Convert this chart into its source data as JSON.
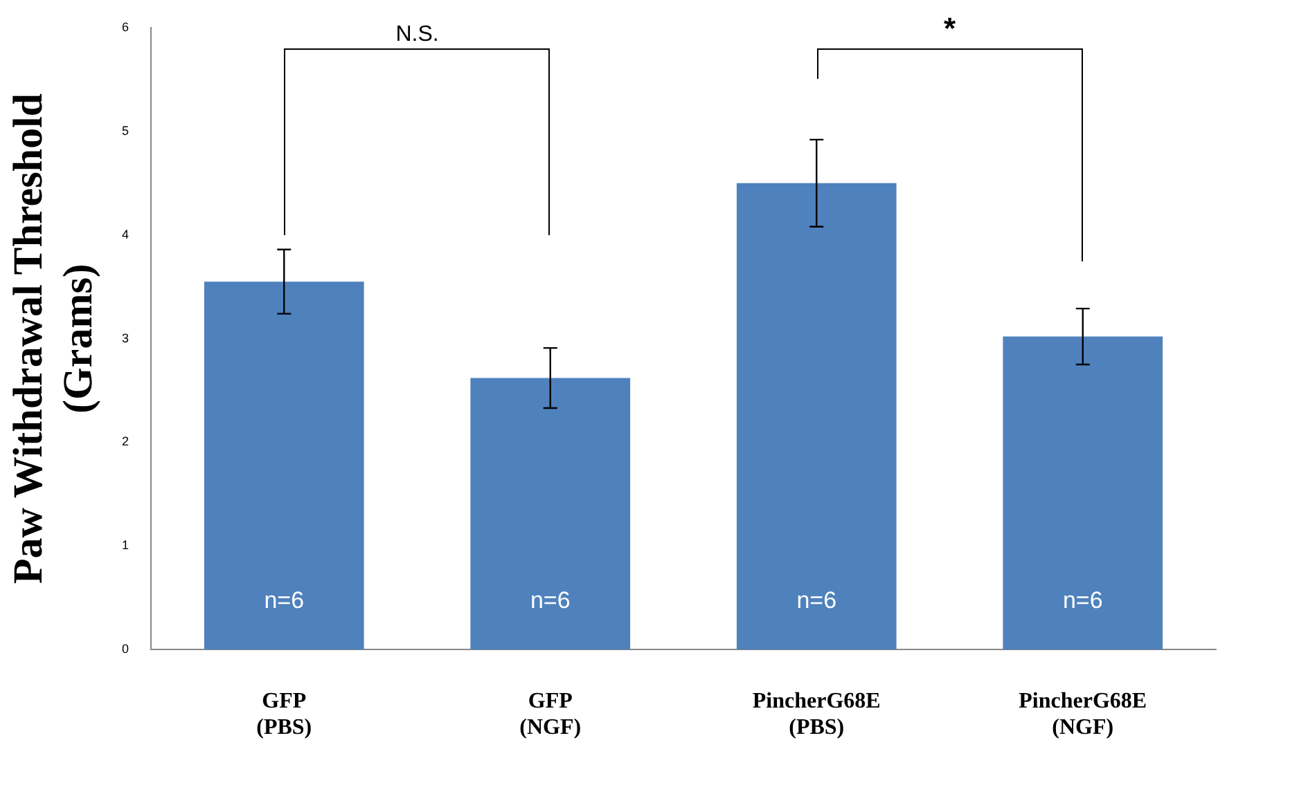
{
  "chart_data": {
    "type": "bar",
    "ylabel": "Paw Withdrawal Threshold\n(Grams)",
    "categories": [
      "GFP\n(PBS)",
      "GFP\n(NGF)",
      "PincherG68E\n(PBS)",
      "PincherG68E\n(NGF)"
    ],
    "values": [
      3.55,
      2.62,
      4.5,
      3.02
    ],
    "color": "#4f81bd",
    "errors": [
      0.31,
      0.29,
      0.42,
      0.27
    ],
    "ylim": [
      0,
      6
    ],
    "yticks": [
      0,
      1,
      2,
      3,
      4,
      5,
      6
    ],
    "grid": false,
    "legend": false,
    "annotations": [
      "N.S.",
      "*",
      "n=6",
      "n=6",
      "n=6",
      "n=6"
    ]
  }
}
